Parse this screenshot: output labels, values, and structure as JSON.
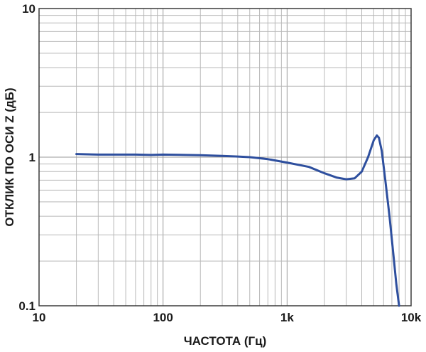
{
  "chart_data": {
    "type": "line",
    "title": "",
    "xlabel": "ЧАСТОТА (Гц)",
    "ylabel": "ОТКЛИК ПО ОСИ Z (дБ)",
    "x_scale": "log",
    "y_scale": "log",
    "xlim": [
      10,
      10000
    ],
    "ylim": [
      0.1,
      10
    ],
    "grid": true,
    "x_ticks": [
      {
        "value": 10,
        "label": "10"
      },
      {
        "value": 100,
        "label": "100"
      },
      {
        "value": 1000,
        "label": "1k"
      },
      {
        "value": 10000,
        "label": "10k"
      }
    ],
    "y_ticks": [
      {
        "value": 0.1,
        "label": "0.1"
      },
      {
        "value": 1,
        "label": "1"
      },
      {
        "value": 10,
        "label": "10"
      }
    ],
    "series": [
      {
        "color": "#2e4f9e",
        "points": [
          [
            20,
            1.05
          ],
          [
            30,
            1.04
          ],
          [
            40,
            1.04
          ],
          [
            60,
            1.04
          ],
          [
            80,
            1.035
          ],
          [
            100,
            1.04
          ],
          [
            150,
            1.035
          ],
          [
            200,
            1.03
          ],
          [
            300,
            1.02
          ],
          [
            400,
            1.01
          ],
          [
            500,
            1.0
          ],
          [
            700,
            0.97
          ],
          [
            1000,
            0.92
          ],
          [
            1500,
            0.86
          ],
          [
            2000,
            0.78
          ],
          [
            2500,
            0.73
          ],
          [
            3000,
            0.71
          ],
          [
            3500,
            0.72
          ],
          [
            4000,
            0.8
          ],
          [
            4500,
            1.0
          ],
          [
            5000,
            1.3
          ],
          [
            5300,
            1.4
          ],
          [
            5500,
            1.35
          ],
          [
            5800,
            1.1
          ],
          [
            6200,
            0.7
          ],
          [
            6700,
            0.4
          ],
          [
            7200,
            0.22
          ],
          [
            7600,
            0.14
          ],
          [
            8000,
            0.1
          ]
        ]
      }
    ]
  },
  "colors": {
    "line": "#2e4f9e",
    "grid": "#b8b8b8",
    "frame": "#3a3a3a"
  }
}
